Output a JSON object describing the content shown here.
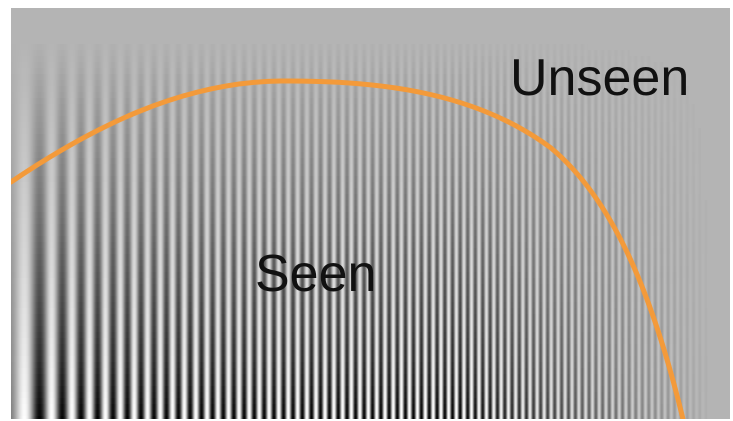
{
  "labels": {
    "seen": "Seen",
    "unseen": "Unseen"
  },
  "colors": {
    "background_gray": "#b4b4b4",
    "grating_dark": "#000000",
    "grating_light": "#ffffff",
    "threshold_curve": "#f39a3a",
    "label_text": "#111111"
  }
}
